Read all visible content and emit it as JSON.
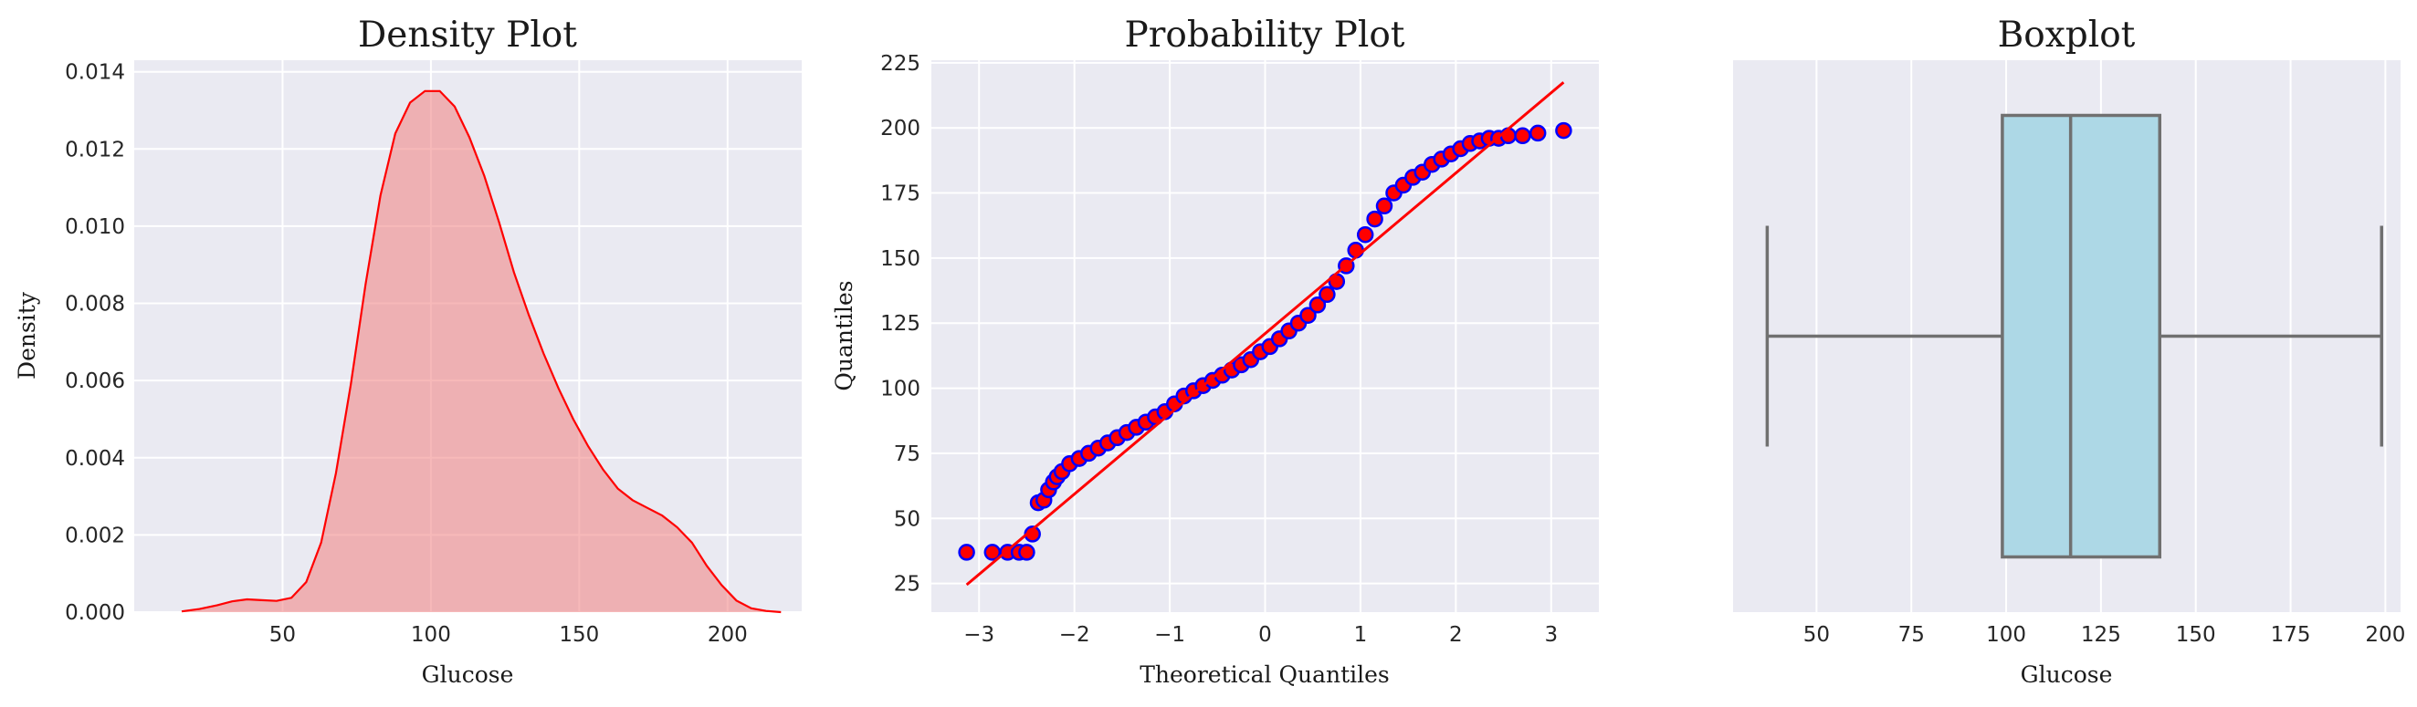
{
  "chart_data": [
    {
      "type": "area",
      "title": "Density Plot",
      "xlabel": "Glucose",
      "ylabel": "Density",
      "xlim": [
        0,
        225
      ],
      "ylim": [
        0,
        0.0143
      ],
      "xticks": [
        50,
        100,
        150,
        200
      ],
      "yticks": [
        0.0,
        0.002,
        0.004,
        0.006,
        0.008,
        0.01,
        0.012,
        0.014
      ],
      "ytick_labels": [
        "0.000",
        "0.002",
        "0.004",
        "0.006",
        "0.008",
        "0.010",
        "0.012",
        "0.014"
      ],
      "grid": true,
      "line_color": "#ff0000",
      "fill_color": "#f08080",
      "fill_alpha": 0.55,
      "x": [
        16,
        22,
        28,
        33,
        38,
        43,
        48,
        53,
        58,
        63,
        68,
        73,
        78,
        83,
        88,
        93,
        98,
        103,
        108,
        113,
        118,
        123,
        128,
        133,
        138,
        143,
        148,
        153,
        158,
        163,
        168,
        173,
        178,
        183,
        188,
        193,
        198,
        203,
        208,
        213,
        218
      ],
      "y": [
        2e-05,
        8e-05,
        0.00018,
        0.00028,
        0.00033,
        0.00031,
        0.00029,
        0.00037,
        0.00078,
        0.0018,
        0.0036,
        0.0059,
        0.0085,
        0.0108,
        0.0124,
        0.0132,
        0.0135,
        0.0135,
        0.0131,
        0.0123,
        0.0113,
        0.0101,
        0.0088,
        0.0077,
        0.0067,
        0.0058,
        0.005,
        0.0043,
        0.0037,
        0.0032,
        0.0029,
        0.0027,
        0.0025,
        0.0022,
        0.0018,
        0.0012,
        0.0007,
        0.0003,
        0.0001,
        3e-05,
        0.0
      ]
    },
    {
      "type": "scatter",
      "title": "Probability Plot",
      "xlabel": "Theoretical Quantiles",
      "ylabel": "Quantiles",
      "xlim": [
        -3.5,
        3.5
      ],
      "ylim": [
        14,
        226
      ],
      "xticks": [
        -3,
        -2,
        -1,
        0,
        1,
        2,
        3
      ],
      "xtick_labels": [
        "−3",
        "−2",
        "−1",
        "0",
        "1",
        "2",
        "3"
      ],
      "yticks": [
        25,
        50,
        75,
        100,
        125,
        150,
        175,
        200,
        225
      ],
      "grid": true,
      "marker_face": "#ff0000",
      "marker_edge": "#0000ff",
      "fit_line": {
        "x": [
          -3.13,
          3.13
        ],
        "y": [
          24.5,
          217.5
        ],
        "color": "#ff0000"
      },
      "points": [
        [
          -3.13,
          37
        ],
        [
          -2.86,
          37
        ],
        [
          -2.7,
          37
        ],
        [
          -2.58,
          37
        ],
        [
          -2.5,
          37
        ],
        [
          -2.44,
          44
        ],
        [
          -2.38,
          56
        ],
        [
          -2.32,
          57
        ],
        [
          -2.27,
          61
        ],
        [
          -2.22,
          64
        ],
        [
          -2.18,
          66
        ],
        [
          -2.13,
          68
        ],
        [
          -2.05,
          71
        ],
        [
          -1.95,
          73
        ],
        [
          -1.85,
          75
        ],
        [
          -1.75,
          77
        ],
        [
          -1.65,
          79
        ],
        [
          -1.55,
          81
        ],
        [
          -1.45,
          83
        ],
        [
          -1.35,
          85
        ],
        [
          -1.25,
          87
        ],
        [
          -1.15,
          89
        ],
        [
          -1.05,
          91
        ],
        [
          -0.95,
          94
        ],
        [
          -0.85,
          97
        ],
        [
          -0.75,
          99
        ],
        [
          -0.65,
          101
        ],
        [
          -0.55,
          103
        ],
        [
          -0.45,
          105
        ],
        [
          -0.35,
          107
        ],
        [
          -0.25,
          109
        ],
        [
          -0.15,
          111
        ],
        [
          -0.05,
          114
        ],
        [
          0.05,
          116
        ],
        [
          0.15,
          119
        ],
        [
          0.25,
          122
        ],
        [
          0.35,
          125
        ],
        [
          0.45,
          128
        ],
        [
          0.55,
          132
        ],
        [
          0.65,
          136
        ],
        [
          0.75,
          141
        ],
        [
          0.85,
          147
        ],
        [
          0.95,
          153
        ],
        [
          1.05,
          159
        ],
        [
          1.15,
          165
        ],
        [
          1.25,
          170
        ],
        [
          1.35,
          175
        ],
        [
          1.45,
          178
        ],
        [
          1.55,
          181
        ],
        [
          1.65,
          183
        ],
        [
          1.75,
          186
        ],
        [
          1.85,
          188
        ],
        [
          1.95,
          190
        ],
        [
          2.05,
          192
        ],
        [
          2.15,
          194
        ],
        [
          2.25,
          195
        ],
        [
          2.35,
          196
        ],
        [
          2.45,
          196
        ],
        [
          2.55,
          197
        ],
        [
          2.7,
          197
        ],
        [
          2.86,
          198
        ],
        [
          3.13,
          199
        ]
      ]
    },
    {
      "type": "box",
      "title": "Boxplot",
      "xlabel": "Glucose",
      "xlim": [
        28,
        204
      ],
      "xticks": [
        50,
        75,
        100,
        125,
        150,
        175,
        200
      ],
      "grid": true,
      "box_color": "#add8e6",
      "edge_color": "#707070",
      "whisker_low": 37,
      "q1": 99,
      "median": 117,
      "q3": 140.5,
      "whisker_high": 199
    }
  ]
}
